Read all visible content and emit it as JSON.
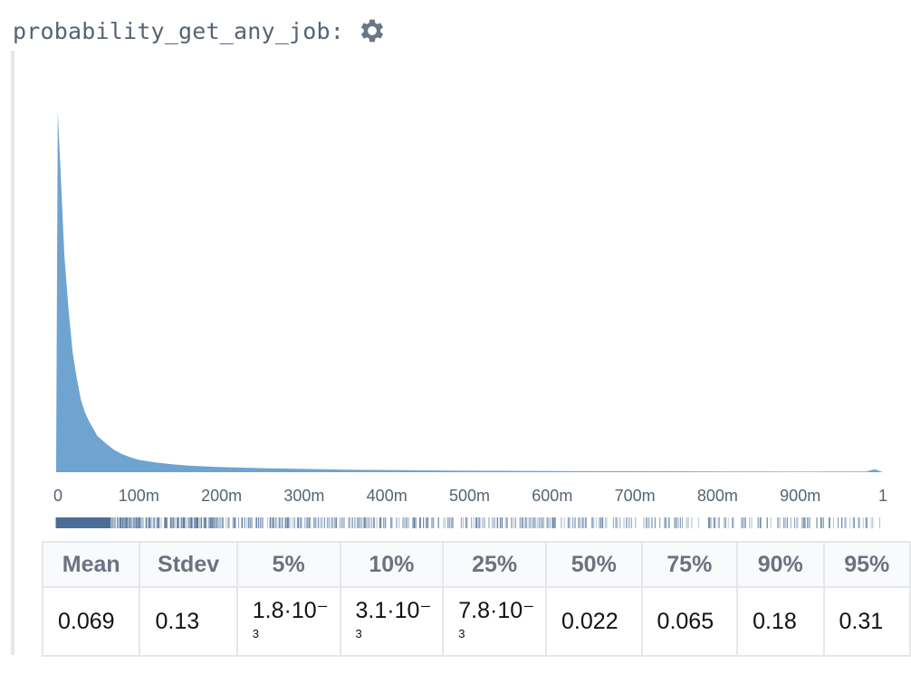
{
  "header": {
    "variable_name": "probability_get_any_job:",
    "settings_icon": "gear-icon"
  },
  "chart_data": {
    "type": "area",
    "title": "",
    "xlabel": "",
    "ylabel": "",
    "xlim": [
      0,
      1
    ],
    "grid": false,
    "fill_color": "#6fa3d0",
    "x_tick_labels": [
      "0",
      "100m",
      "200m",
      "300m",
      "400m",
      "500m",
      "600m",
      "700m",
      "800m",
      "900m",
      "1"
    ],
    "x_ticks": [
      0,
      0.1,
      0.2,
      0.3,
      0.4,
      0.5,
      0.6,
      0.7,
      0.8,
      0.9,
      1
    ],
    "density": {
      "x": [
        0,
        0.002,
        0.005,
        0.01,
        0.015,
        0.02,
        0.025,
        0.03,
        0.035,
        0.04,
        0.05,
        0.06,
        0.07,
        0.08,
        0.09,
        0.1,
        0.12,
        0.14,
        0.16,
        0.18,
        0.2,
        0.25,
        0.3,
        0.35,
        0.4,
        0.45,
        0.5,
        0.6,
        0.7,
        0.8,
        0.9,
        0.98,
        0.99,
        1
      ],
      "y": [
        0.02,
        1.0,
        0.85,
        0.6,
        0.45,
        0.33,
        0.26,
        0.2,
        0.165,
        0.14,
        0.1,
        0.08,
        0.062,
        0.05,
        0.041,
        0.034,
        0.027,
        0.022,
        0.018,
        0.016,
        0.014,
        0.011,
        0.009,
        0.007,
        0.006,
        0.005,
        0.004,
        0.003,
        0.0025,
        0.002,
        0.0015,
        0.002,
        0.008,
        0.0
      ]
    },
    "rug_color": "#4d6e99"
  },
  "stats_table": {
    "headers": [
      "Mean",
      "Stdev",
      "5%",
      "10%",
      "25%",
      "50%",
      "75%",
      "90%",
      "95%"
    ],
    "values": [
      {
        "main": "0.069",
        "small": ""
      },
      {
        "main": "0.13",
        "small": ""
      },
      {
        "main": "1.8·10⁻",
        "small": "3"
      },
      {
        "main": "3.1·10⁻",
        "small": "3"
      },
      {
        "main": "7.8·10⁻",
        "small": "3"
      },
      {
        "main": "0.022",
        "small": ""
      },
      {
        "main": "0.065",
        "small": ""
      },
      {
        "main": "0.18",
        "small": ""
      },
      {
        "main": "0.31",
        "small": ""
      }
    ]
  }
}
